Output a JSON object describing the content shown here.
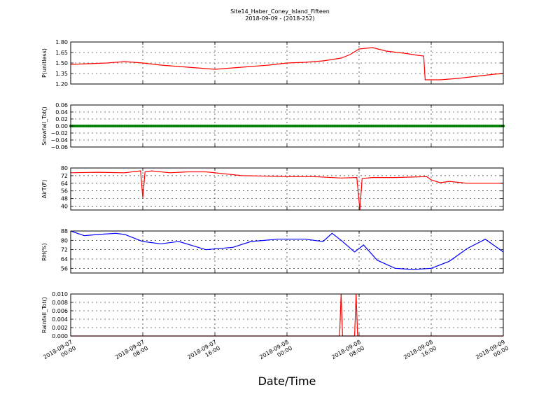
{
  "title": "Site14_Haber_Coney_Island_Fifteen",
  "subtitle": "2018-09-09 - (2018-252)",
  "xlabel": "Date/Time",
  "x_ticks": [
    {
      "line1": "2018-09-07",
      "line2": "00:00"
    },
    {
      "line1": "2018-09-07",
      "line2": "08:00"
    },
    {
      "line1": "2018-09-07",
      "line2": "16:00"
    },
    {
      "line1": "2018-09-08",
      "line2": "00:00"
    },
    {
      "line1": "2018-09-08",
      "line2": "08:00"
    },
    {
      "line1": "2018-09-08",
      "line2": "16:00"
    },
    {
      "line1": "2018-09-09",
      "line2": "00:00"
    }
  ],
  "chart_data": [
    {
      "type": "line",
      "ylabel": "P(unitless)",
      "ylim": [
        1.2,
        1.8
      ],
      "yticks": [
        "1.80",
        "1.65",
        "1.50",
        "1.35",
        "1.20"
      ],
      "ytick_values": [
        1.8,
        1.65,
        1.5,
        1.35,
        1.2
      ],
      "xlim": [
        "2018-09-07 00:00",
        "2018-09-09 00:00"
      ],
      "grid": true,
      "color": "#ff0000",
      "x": [
        "2018-09-07 00:00",
        "2018-09-07 02:00",
        "2018-09-07 04:00",
        "2018-09-07 06:00",
        "2018-09-07 08:00",
        "2018-09-07 10:00",
        "2018-09-07 12:00",
        "2018-09-07 14:00",
        "2018-09-07 16:00",
        "2018-09-07 18:00",
        "2018-09-07 20:00",
        "2018-09-07 22:00",
        "2018-09-08 00:00",
        "2018-09-08 02:00",
        "2018-09-08 04:00",
        "2018-09-08 06:00",
        "2018-09-08 07:00",
        "2018-09-08 08:00",
        "2018-09-08 09:30",
        "2018-09-08 11:00",
        "2018-09-08 13:00",
        "2018-09-08 14:30",
        "2018-09-08 15:10",
        "2018-09-08 15:20",
        "2018-09-08 17:00",
        "2018-09-08 19:00",
        "2018-09-08 21:00",
        "2018-09-08 23:00",
        "2018-09-09 00:00"
      ],
      "values": [
        1.48,
        1.49,
        1.5,
        1.52,
        1.5,
        1.47,
        1.45,
        1.43,
        1.41,
        1.43,
        1.45,
        1.47,
        1.5,
        1.51,
        1.53,
        1.57,
        1.62,
        1.7,
        1.72,
        1.67,
        1.64,
        1.61,
        1.6,
        1.26,
        1.26,
        1.28,
        1.31,
        1.34,
        1.35
      ]
    },
    {
      "type": "scatter",
      "ylabel": "Snowfall_Tot()",
      "ylim": [
        -0.06,
        0.06
      ],
      "yticks": [
        "0.06",
        "0.04",
        "0.02",
        "0.00",
        "−0.02",
        "−0.04",
        "−0.06"
      ],
      "ytick_values": [
        0.06,
        0.04,
        0.02,
        0.0,
        -0.02,
        -0.04,
        -0.06
      ],
      "xlim": [
        "2018-09-07 00:00",
        "2018-09-09 00:00"
      ],
      "grid": true,
      "color": "#008000",
      "x": [
        "2018-09-07 00:00",
        "2018-09-09 00:00"
      ],
      "values": [
        0.0,
        0.0
      ],
      "note_constant": "all points at 0.00 across the range"
    },
    {
      "type": "line",
      "ylabel": "AirT(F)",
      "ylim": [
        36,
        80
      ],
      "yticks": [
        "80",
        "72",
        "64",
        "56",
        "48",
        "40"
      ],
      "ytick_values": [
        80,
        72,
        64,
        56,
        48,
        40
      ],
      "xlim": [
        "2018-09-07 00:00",
        "2018-09-09 00:00"
      ],
      "grid": true,
      "color": "#ff0000",
      "x": [
        "2018-09-07 00:00",
        "2018-09-07 03:00",
        "2018-09-07 06:00",
        "2018-09-07 07:45",
        "2018-09-07 08:00",
        "2018-09-07 08:15",
        "2018-09-07 09:00",
        "2018-09-07 11:00",
        "2018-09-07 13:00",
        "2018-09-07 15:00",
        "2018-09-07 17:00",
        "2018-09-07 19:00",
        "2018-09-08 00:00",
        "2018-09-08 03:00",
        "2018-09-08 06:00",
        "2018-09-08 07:45",
        "2018-09-08 08:05",
        "2018-09-08 08:20",
        "2018-09-08 09:30",
        "2018-09-08 12:00",
        "2018-09-08 15:30",
        "2018-09-08 16:00",
        "2018-09-08 17:00",
        "2018-09-08 18:00",
        "2018-09-08 20:00",
        "2018-09-09 00:00"
      ],
      "values": [
        75,
        75.5,
        75,
        77,
        49,
        76,
        77,
        75,
        76,
        76,
        74,
        72,
        71,
        71,
        69.5,
        70,
        36,
        69,
        70,
        70,
        71,
        67.5,
        64.5,
        66,
        64,
        64
      ]
    },
    {
      "type": "line",
      "ylabel": "RH(%)",
      "ylim": [
        52,
        88
      ],
      "yticks": [
        "88",
        "80",
        "72",
        "64",
        "56"
      ],
      "ytick_values": [
        88,
        80,
        72,
        64,
        56
      ],
      "xlim": [
        "2018-09-07 00:00",
        "2018-09-09 00:00"
      ],
      "grid": true,
      "color": "#0000ff",
      "x": [
        "2018-09-07 00:00",
        "2018-09-07 01:30",
        "2018-09-07 03:00",
        "2018-09-07 05:00",
        "2018-09-07 06:00",
        "2018-09-07 08:00",
        "2018-09-07 10:00",
        "2018-09-07 12:00",
        "2018-09-07 15:00",
        "2018-09-07 18:00",
        "2018-09-07 20:00",
        "2018-09-07 23:00",
        "2018-09-08 02:00",
        "2018-09-08 04:00",
        "2018-09-08 05:00",
        "2018-09-08 06:00",
        "2018-09-08 07:30",
        "2018-09-08 08:30",
        "2018-09-08 10:00",
        "2018-09-08 12:00",
        "2018-09-08 14:00",
        "2018-09-08 16:00",
        "2018-09-08 18:00",
        "2018-09-08 20:00",
        "2018-09-08 22:00",
        "2018-09-09 00:00"
      ],
      "values": [
        88,
        84,
        85,
        86,
        85,
        79,
        77,
        79,
        72,
        74,
        79,
        81,
        81,
        79,
        86,
        80,
        70,
        76,
        63,
        56,
        55,
        56,
        62,
        73,
        81,
        70
      ]
    },
    {
      "type": "line",
      "ylabel": "Rainfall_Tot()",
      "ylim": [
        0.0,
        0.01
      ],
      "yticks": [
        "0.010",
        "0.008",
        "0.006",
        "0.004",
        "0.002",
        "0.000"
      ],
      "ytick_values": [
        0.01,
        0.008,
        0.006,
        0.004,
        0.002,
        0.0
      ],
      "xlim": [
        "2018-09-07 00:00",
        "2018-09-09 00:00"
      ],
      "grid": true,
      "color": "#ff0000",
      "x": [
        "2018-09-07 00:00",
        "2018-09-08 05:50",
        "2018-09-08 06:00",
        "2018-09-08 06:10",
        "2018-09-08 07:30",
        "2018-09-08 07:40",
        "2018-09-08 07:50",
        "2018-09-09 00:00"
      ],
      "values": [
        0,
        0,
        0.01,
        0,
        0,
        0.01,
        0,
        0
      ]
    }
  ]
}
